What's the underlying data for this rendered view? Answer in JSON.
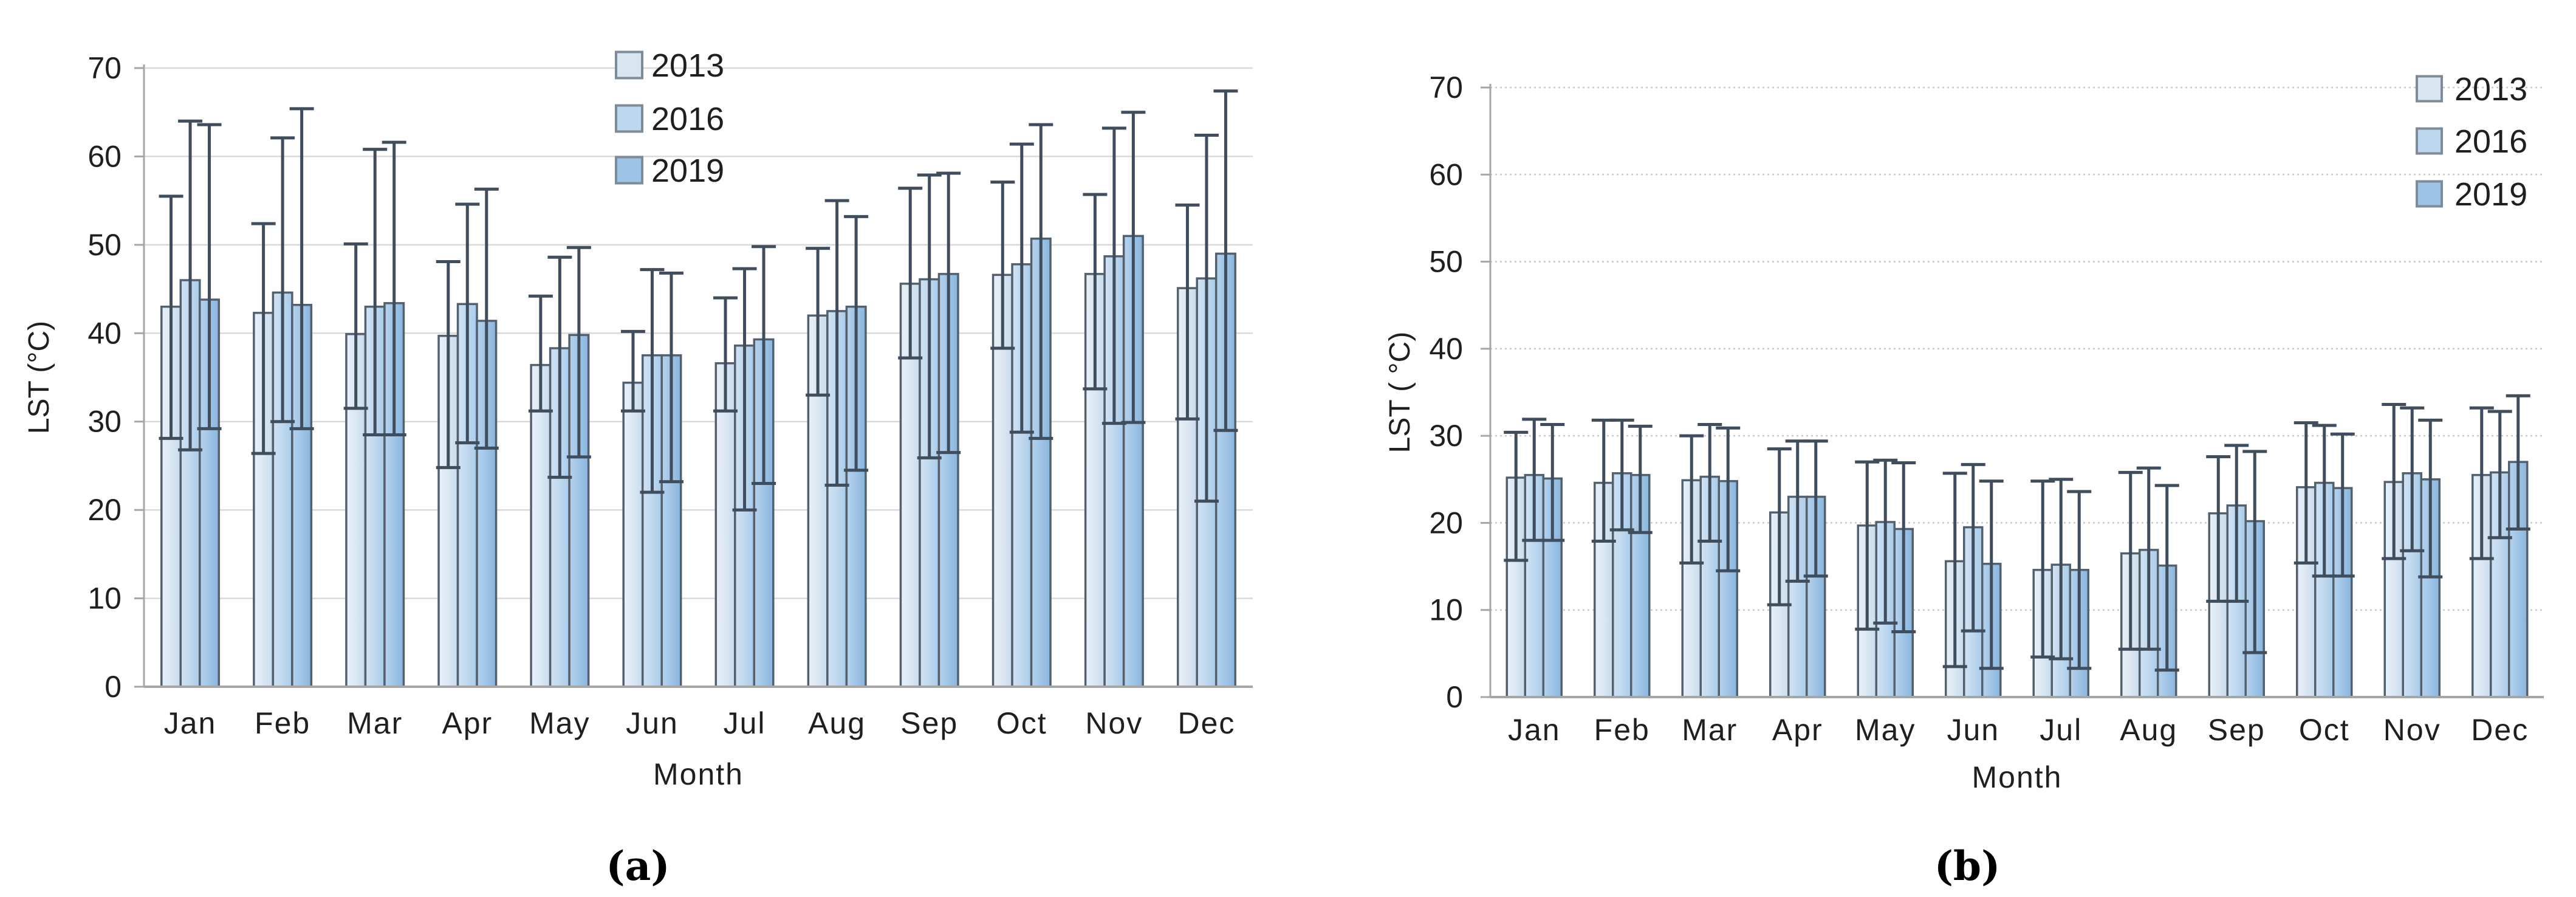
{
  "figure": {
    "description": "Monthly LST bar charts for 2013, 2016 and 2019 with error bars",
    "background": "#ffffff"
  },
  "colors": {
    "series_2013": "#d9e6f2",
    "series_2013_light": "#e9f0f8",
    "series_2013_dark": "#c8dbee",
    "series_2016": "#bdd7ee",
    "series_2016_light": "#d2e2f4",
    "series_2016_dark": "#a9cbe9",
    "series_2019": "#9dc3e6",
    "series_2019_light": "#b6d2ec",
    "series_2019_dark": "#8ab5dd",
    "bar_border": "#53616f",
    "error_bar": "#3f4d5c",
    "gridline_a": "#d9d9d9",
    "gridline_b": "#c9c9c9",
    "axis": "#a6a6a6",
    "text": "#1f1f1f"
  },
  "chart_data": [
    {
      "id": "a",
      "type": "bar",
      "caption": "(a)",
      "xlabel": "Month",
      "ylabel": "LST (°C)",
      "ylim": [
        0,
        70
      ],
      "yticks": [
        0,
        10,
        20,
        30,
        40,
        50,
        60,
        70
      ],
      "grid": "horizontal",
      "legend_position": "top-center",
      "error_bars": true,
      "categories": [
        "Jan",
        "Feb",
        "Mar",
        "Apr",
        "May",
        "Jun",
        "Jul",
        "Aug",
        "Sep",
        "Oct",
        "Nov",
        "Dec"
      ],
      "series": [
        {
          "name": "2013",
          "values": [
            43.0,
            42.3,
            39.9,
            39.7,
            36.4,
            34.4,
            36.6,
            42.0,
            45.6,
            46.6,
            46.7,
            45.1
          ],
          "err_high": [
            55.5,
            52.4,
            50.1,
            48.1,
            44.2,
            40.2,
            44.0,
            49.6,
            56.4,
            57.1,
            55.7,
            54.5
          ],
          "err_low": [
            28.1,
            26.4,
            31.5,
            24.8,
            31.2,
            31.2,
            31.2,
            33.0,
            37.2,
            38.3,
            33.7,
            30.3
          ]
        },
        {
          "name": "2016",
          "values": [
            46.0,
            44.6,
            43.0,
            43.3,
            38.3,
            37.5,
            38.6,
            42.5,
            46.1,
            47.8,
            48.7,
            46.2
          ],
          "err_high": [
            64.0,
            62.1,
            60.8,
            54.6,
            48.6,
            47.2,
            47.3,
            55.0,
            57.9,
            61.4,
            63.2,
            62.4
          ],
          "err_low": [
            26.8,
            30.0,
            28.5,
            27.6,
            23.7,
            22.0,
            20.0,
            22.8,
            25.9,
            28.8,
            29.8,
            21.0
          ]
        },
        {
          "name": "2019",
          "values": [
            43.8,
            43.2,
            43.4,
            41.4,
            39.8,
            37.5,
            39.3,
            43.0,
            46.7,
            50.7,
            51.0,
            49.0
          ],
          "err_high": [
            63.6,
            65.4,
            61.6,
            56.3,
            49.7,
            46.8,
            49.8,
            53.2,
            58.1,
            63.6,
            65.0,
            67.4
          ],
          "err_low": [
            29.2,
            29.2,
            28.5,
            27.0,
            26.0,
            23.2,
            23.0,
            24.5,
            26.5,
            28.1,
            29.9,
            29.0
          ]
        }
      ]
    },
    {
      "id": "b",
      "type": "bar",
      "caption": "(b)",
      "xlabel": "Month",
      "ylabel": "LST ( °C)",
      "ylim": [
        0,
        70
      ],
      "yticks": [
        0,
        10,
        20,
        30,
        40,
        50,
        60,
        70
      ],
      "grid": "horizontal-dotted",
      "legend_position": "top-right",
      "error_bars": true,
      "categories": [
        "Jan",
        "Feb",
        "Mar",
        "Apr",
        "May",
        "Jun",
        "Jul",
        "Aug",
        "Sep",
        "Oct",
        "Nov",
        "Dec"
      ],
      "series": [
        {
          "name": "2013",
          "values": [
            25.2,
            24.6,
            24.9,
            21.2,
            19.7,
            15.6,
            14.6,
            16.5,
            21.1,
            24.1,
            24.7,
            25.5
          ],
          "err_high": [
            30.4,
            31.8,
            30.0,
            28.5,
            27.0,
            25.7,
            24.8,
            25.8,
            27.6,
            31.5,
            33.6,
            33.2
          ],
          "err_low": [
            15.7,
            17.9,
            15.4,
            10.6,
            7.8,
            3.5,
            4.6,
            5.5,
            11.0,
            15.4,
            15.9,
            15.9
          ]
        },
        {
          "name": "2016",
          "values": [
            25.5,
            25.7,
            25.3,
            23.0,
            20.1,
            19.5,
            15.2,
            16.9,
            22.0,
            24.6,
            25.7,
            25.8
          ],
          "err_high": [
            31.9,
            31.8,
            31.3,
            29.4,
            27.2,
            26.7,
            25.0,
            26.3,
            28.9,
            31.2,
            33.2,
            32.8
          ],
          "err_low": [
            18.0,
            19.2,
            17.9,
            13.3,
            8.5,
            7.6,
            4.4,
            5.5,
            11.0,
            13.9,
            16.8,
            18.3
          ]
        },
        {
          "name": "2019",
          "values": [
            25.1,
            25.5,
            24.8,
            23.0,
            19.3,
            15.3,
            14.6,
            15.1,
            20.2,
            24.0,
            25.0,
            27.0
          ],
          "err_high": [
            31.3,
            31.1,
            30.9,
            29.4,
            26.9,
            24.8,
            23.6,
            24.3,
            28.2,
            30.2,
            31.8,
            34.6
          ],
          "err_low": [
            18.0,
            18.9,
            14.5,
            13.9,
            7.5,
            3.3,
            3.3,
            3.1,
            5.1,
            13.9,
            13.8,
            19.3
          ]
        }
      ]
    }
  ]
}
